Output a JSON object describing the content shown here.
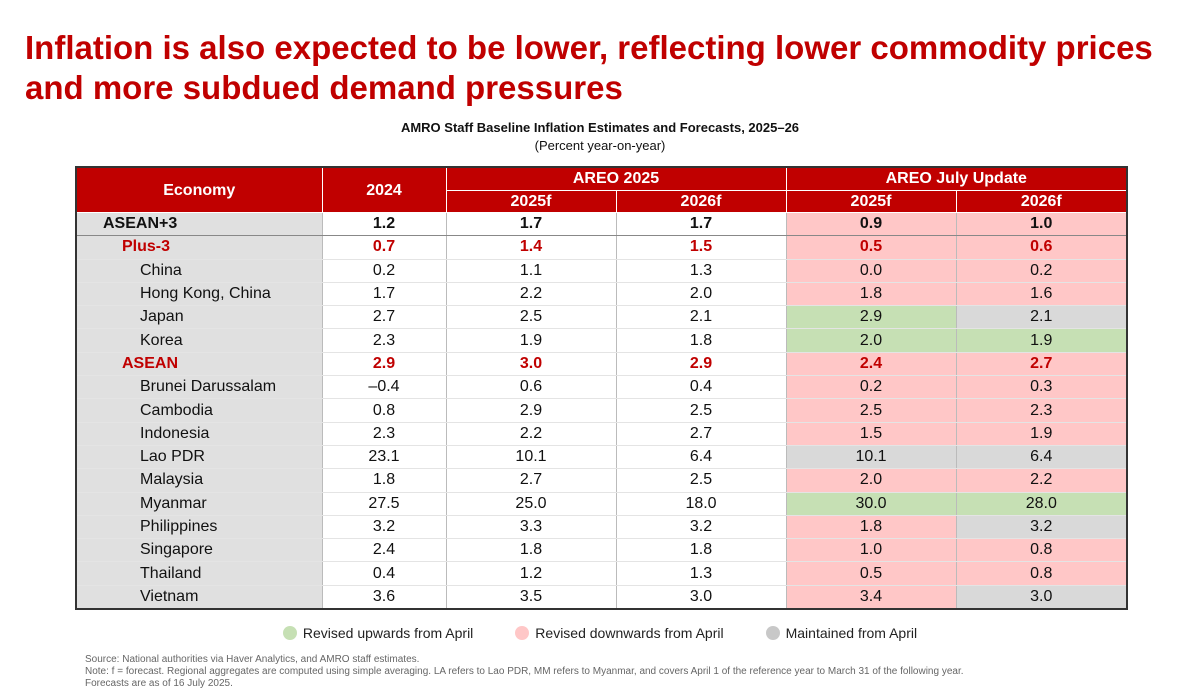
{
  "title": "Inflation is also expected to be lower, reflecting lower commodity prices and more subdued demand pressures",
  "chart_data": {
    "type": "table",
    "title": "AMRO Staff Baseline Inflation Estimates and Forecasts, 2025–26",
    "subtitle": "(Percent year-on-year)",
    "header": {
      "economy": "Economy",
      "y2024": "2024",
      "group1": "AREO 2025",
      "group2": "AREO July Update",
      "sub": [
        "2025f",
        "2026f",
        "2025f",
        "2026f"
      ]
    },
    "rows": [
      {
        "name": "ASEAN+3",
        "level": 0,
        "values": [
          "1.2",
          "1.7",
          "1.7",
          "0.9",
          "1.0"
        ],
        "revisions": [
          "down",
          "down"
        ]
      },
      {
        "name": "Plus-3",
        "level": 1,
        "values": [
          "0.7",
          "1.4",
          "1.5",
          "0.5",
          "0.6"
        ],
        "revisions": [
          "down",
          "down"
        ]
      },
      {
        "name": "China",
        "level": 2,
        "values": [
          "0.2",
          "1.1",
          "1.3",
          "0.0",
          "0.2"
        ],
        "revisions": [
          "down",
          "down"
        ]
      },
      {
        "name": "Hong Kong, China",
        "level": 2,
        "values": [
          "1.7",
          "2.2",
          "2.0",
          "1.8",
          "1.6"
        ],
        "revisions": [
          "down",
          "down"
        ]
      },
      {
        "name": "Japan",
        "level": 2,
        "values": [
          "2.7",
          "2.5",
          "2.1",
          "2.9",
          "2.1"
        ],
        "revisions": [
          "up",
          "same"
        ]
      },
      {
        "name": "Korea",
        "level": 2,
        "values": [
          "2.3",
          "1.9",
          "1.8",
          "2.0",
          "1.9"
        ],
        "revisions": [
          "up",
          "up"
        ]
      },
      {
        "name": "ASEAN",
        "level": 1,
        "values": [
          "2.9",
          "3.0",
          "2.9",
          "2.4",
          "2.7"
        ],
        "revisions": [
          "down",
          "down"
        ]
      },
      {
        "name": "Brunei Darussalam",
        "level": 2,
        "values": [
          "–0.4",
          "0.6",
          "0.4",
          "0.2",
          "0.3"
        ],
        "revisions": [
          "down",
          "down"
        ]
      },
      {
        "name": "Cambodia",
        "level": 2,
        "values": [
          "0.8",
          "2.9",
          "2.5",
          "2.5",
          "2.3"
        ],
        "revisions": [
          "down",
          "down"
        ]
      },
      {
        "name": "Indonesia",
        "level": 2,
        "values": [
          "2.3",
          "2.2",
          "2.7",
          "1.5",
          "1.9"
        ],
        "revisions": [
          "down",
          "down"
        ]
      },
      {
        "name": "Lao PDR",
        "level": 2,
        "values": [
          "23.1",
          "10.1",
          "6.4",
          "10.1",
          "6.4"
        ],
        "revisions": [
          "same",
          "same"
        ]
      },
      {
        "name": "Malaysia",
        "level": 2,
        "values": [
          "1.8",
          "2.7",
          "2.5",
          "2.0",
          "2.2"
        ],
        "revisions": [
          "down",
          "down"
        ]
      },
      {
        "name": "Myanmar",
        "level": 2,
        "values": [
          "27.5",
          "25.0",
          "18.0",
          "30.0",
          "28.0"
        ],
        "revisions": [
          "up",
          "up"
        ]
      },
      {
        "name": "Philippines",
        "level": 2,
        "values": [
          "3.2",
          "3.3",
          "3.2",
          "1.8",
          "3.2"
        ],
        "revisions": [
          "down",
          "same"
        ]
      },
      {
        "name": "Singapore",
        "level": 2,
        "values": [
          "2.4",
          "1.8",
          "1.8",
          "1.0",
          "0.8"
        ],
        "revisions": [
          "down",
          "down"
        ]
      },
      {
        "name": "Thailand",
        "level": 2,
        "values": [
          "0.4",
          "1.2",
          "1.3",
          "0.5",
          "0.8"
        ],
        "revisions": [
          "down",
          "down"
        ]
      },
      {
        "name": "Vietnam",
        "level": 2,
        "values": [
          "3.6",
          "3.5",
          "3.0",
          "3.4",
          "3.0"
        ],
        "revisions": [
          "down",
          "same"
        ]
      }
    ],
    "legend": [
      {
        "key": "up",
        "label": "Revised upwards from April",
        "color": "#c6e0b4"
      },
      {
        "key": "down",
        "label": "Revised downwards from April",
        "color": "#ffc7c7"
      },
      {
        "key": "same",
        "label": "Maintained from April",
        "color": "#c8c8c8"
      }
    ]
  },
  "notes": {
    "source": "Source: National authorities via Haver Analytics, and AMRO staff estimates.",
    "note": "Note: f = forecast. Regional aggregates are computed using simple averaging. LA refers to Lao PDR, MM refers to Myanmar, and covers April 1 of the reference year to March 31 of the following year.",
    "asof": "Forecasts are as of 16 July 2025."
  },
  "colors": {
    "accent": "#c00000"
  }
}
